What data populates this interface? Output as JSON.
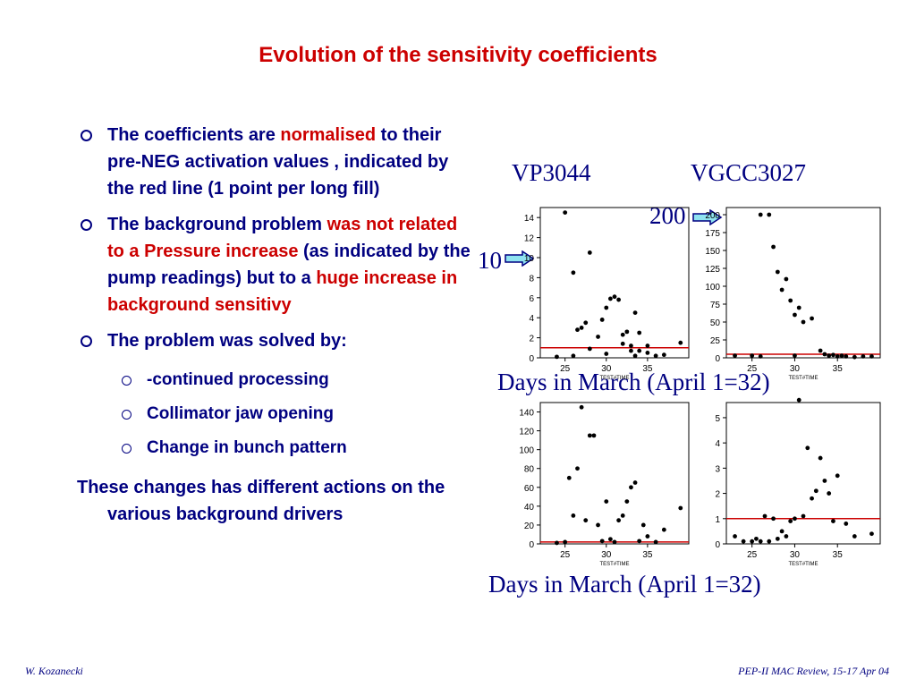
{
  "slide": {
    "title": "Evolution of the sensitivity coefficients",
    "bullets": {
      "b1_a": "The coefficients are ",
      "b1_red": "normalised",
      "b1_b": " to their pre-NEG activation values , indicated by the red line (1 point per long fill)",
      "b2_a": "The background problem ",
      "b2_red1": "was not related to a Pressure increase",
      "b2_b": " (as indicated by the pump readings) but to a ",
      "b2_red2": "huge increase in background sensitivy",
      "b3": "The problem was solved by:",
      "sub": [
        "-continued processing",
        "Collimator jaw opening",
        "Change in bunch pattern"
      ],
      "closing": "These changes has different actions on the various background drivers"
    },
    "labels": {
      "vp": "VP3044",
      "vgcc": "VGCC3027",
      "arrow_200": "200",
      "arrow_10": "10",
      "days_top": "Days in March (April 1=32)",
      "days_bottom": "Days in March (April 1=32)",
      "small_axis": "TEST#TIME"
    },
    "footer": {
      "left": "W. Kozanecki",
      "right": "PEP-II MAC Review, 15-17 Apr 04"
    }
  },
  "chart_data": [
    {
      "type": "scatter",
      "xticks": [
        25,
        30,
        35
      ],
      "yticks": [
        0,
        2,
        4,
        6,
        8,
        10,
        12,
        14
      ],
      "xlim": [
        22,
        40
      ],
      "ylim": [
        0,
        15
      ],
      "refline": 1,
      "x": [
        24,
        25,
        26,
        26.5,
        27,
        27.5,
        28,
        28,
        29,
        29.5,
        30,
        30.5,
        31,
        31.5,
        32,
        32,
        32.5,
        33,
        33,
        33.5,
        34,
        34,
        35,
        36,
        37,
        39,
        26,
        30,
        33.5,
        35
      ],
      "y": [
        0.1,
        14.5,
        8.5,
        2.8,
        3,
        3.5,
        10.5,
        0.9,
        2.1,
        3.8,
        5,
        5.9,
        6.1,
        5.8,
        2.3,
        1.4,
        2.6,
        0.7,
        1.2,
        4.5,
        0.7,
        2.5,
        0.5,
        0.2,
        0.3,
        1.5,
        0.2,
        0.4,
        0.2,
        1.2
      ]
    },
    {
      "type": "scatter",
      "xticks": [
        25,
        30,
        35
      ],
      "yticks": [
        0,
        25,
        50,
        75,
        100,
        125,
        150,
        175,
        200
      ],
      "xlim": [
        22,
        40
      ],
      "ylim": [
        0,
        210
      ],
      "refline": 5,
      "x": [
        23,
        25,
        26,
        27,
        27.5,
        28,
        28.5,
        29,
        29.5,
        30,
        30.5,
        31,
        32,
        33,
        33.5,
        34,
        34.5,
        35,
        35.5,
        36,
        37,
        38,
        39,
        26,
        30
      ],
      "y": [
        3,
        3,
        200,
        200,
        155,
        120,
        95,
        110,
        80,
        60,
        70,
        50,
        55,
        10,
        5,
        3,
        4,
        2,
        3,
        2,
        1,
        2,
        2,
        2,
        3
      ]
    },
    {
      "type": "scatter",
      "xticks": [
        25,
        30,
        35
      ],
      "yticks": [
        0,
        20,
        40,
        60,
        80,
        100,
        120,
        140
      ],
      "xlim": [
        22,
        40
      ],
      "ylim": [
        0,
        150
      ],
      "refline": 2,
      "x": [
        24,
        25,
        25.5,
        26,
        26.5,
        27,
        27.5,
        28,
        28.5,
        29,
        29.5,
        30,
        30.5,
        31,
        31.5,
        32,
        32.5,
        33,
        33.5,
        34,
        34.5,
        35,
        36,
        37,
        39
      ],
      "y": [
        1,
        2,
        70,
        30,
        80,
        145,
        25,
        115,
        115,
        20,
        3,
        45,
        5,
        2,
        25,
        30,
        45,
        60,
        65,
        3,
        20,
        8,
        2,
        15,
        38
      ]
    },
    {
      "type": "scatter",
      "xticks": [
        25,
        30,
        35
      ],
      "yticks": [
        0,
        1,
        2,
        3,
        4,
        5
      ],
      "xlim": [
        22,
        40
      ],
      "ylim": [
        0,
        5.6
      ],
      "refline": 1,
      "x": [
        23,
        24,
        25,
        25.5,
        26,
        26.5,
        27,
        27.5,
        28,
        28.5,
        29,
        29.5,
        30,
        30.5,
        31,
        31.5,
        32,
        32.5,
        33,
        33.5,
        34,
        34.5,
        35,
        36,
        37,
        39
      ],
      "y": [
        0.3,
        0.1,
        0.1,
        0.2,
        0.1,
        1.1,
        0.1,
        1,
        0.2,
        0.5,
        0.3,
        0.9,
        1,
        5.7,
        1.1,
        3.8,
        1.8,
        2.1,
        3.4,
        2.5,
        2,
        0.9,
        2.7,
        0.8,
        0.3,
        0.4
      ]
    }
  ]
}
